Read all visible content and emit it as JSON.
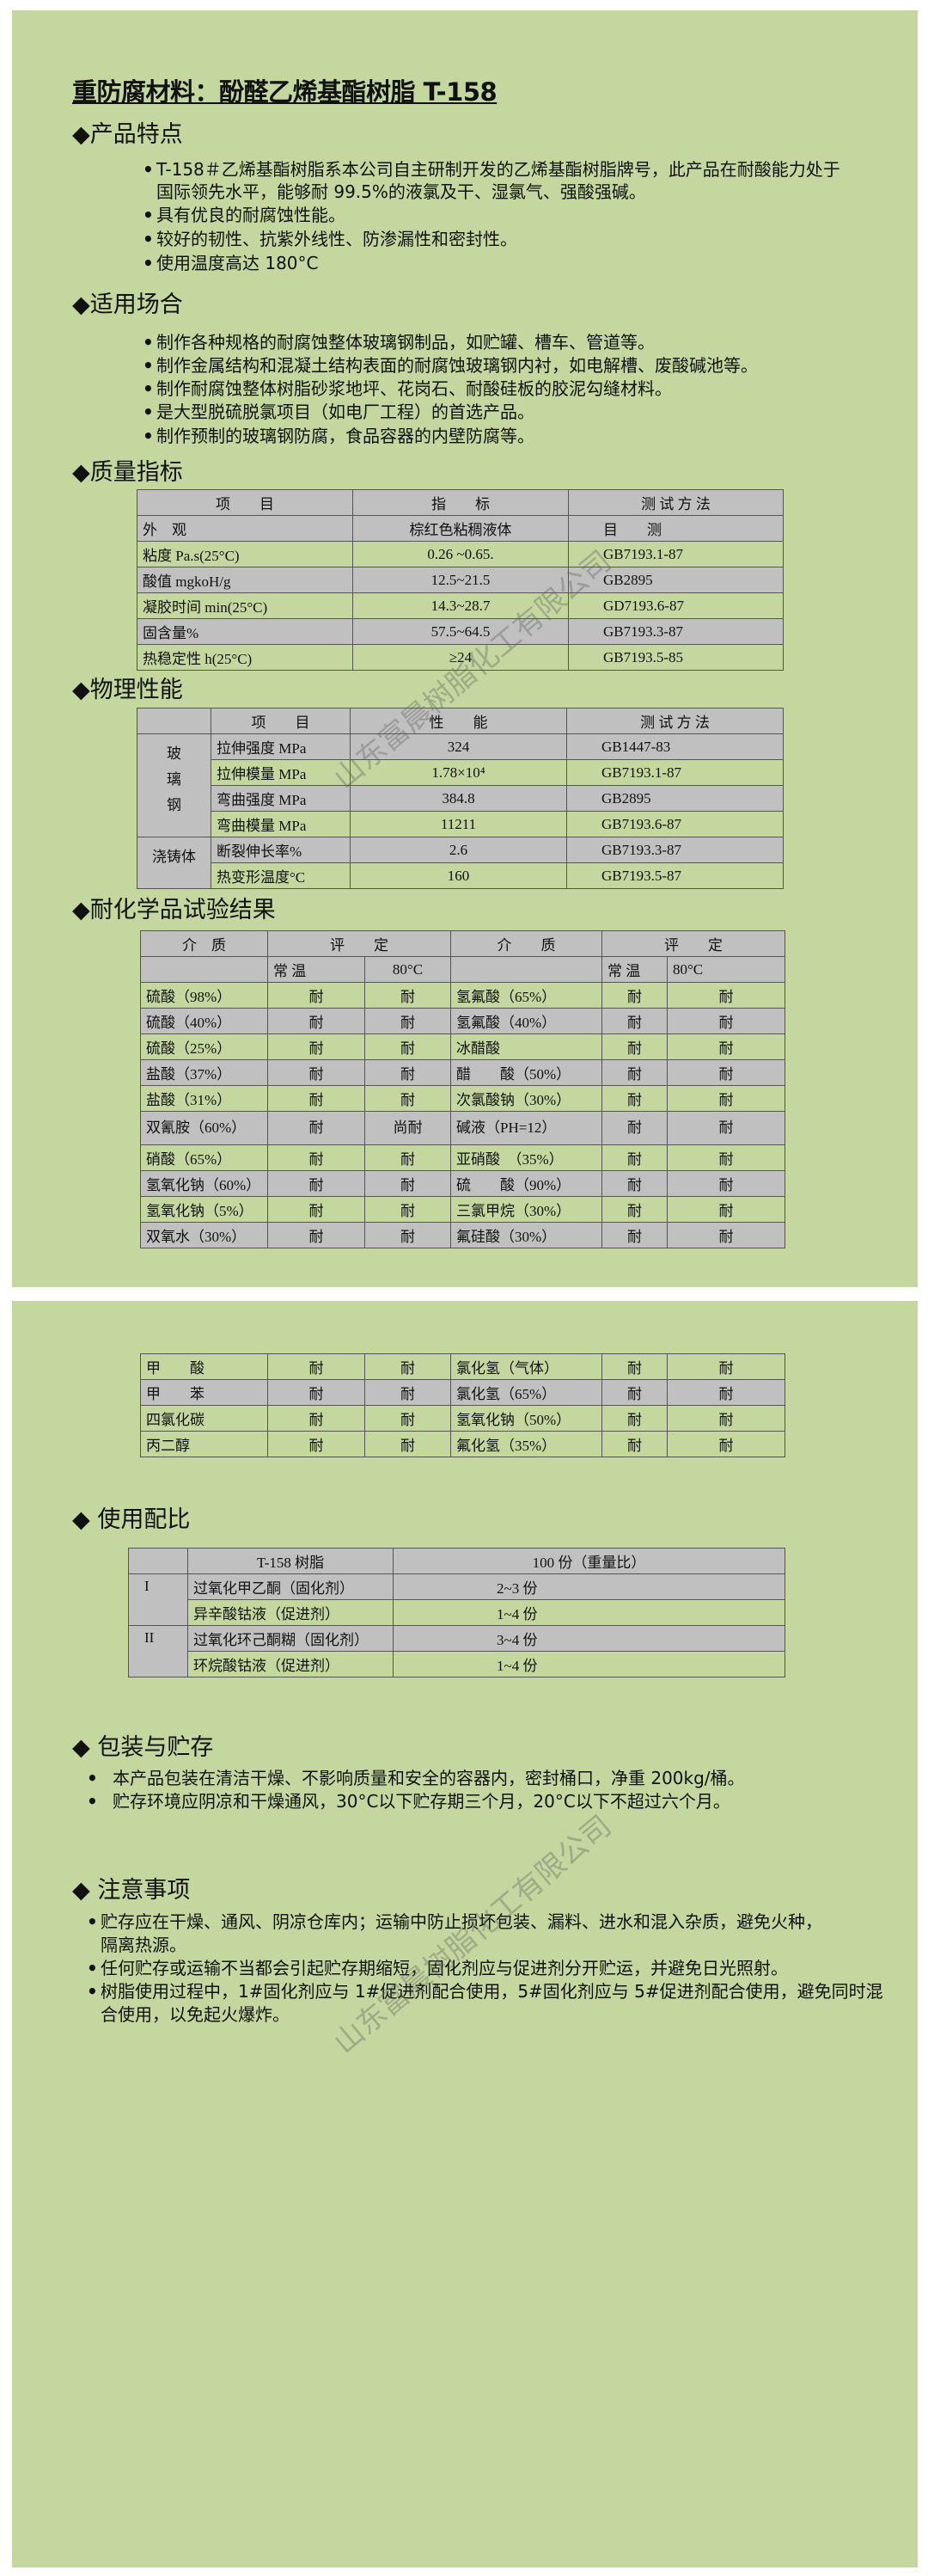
{
  "title": "重防腐材料：酚醛乙烯基酯树脂 T-158",
  "watermark": "山东富晨树脂化工有限公司",
  "colors": {
    "panel_green": "#c4d79e",
    "row_gray": "#c0c0c0"
  },
  "features": {
    "heading": "◆产品特点",
    "items": [
      "T-158＃乙烯基酯树脂系本公司自主研制开发的乙烯基酯树脂牌号，此产品在耐酸能力处于",
      "国际领先水平，能够耐 99.5%的液氯及干、湿氯气、强酸强碱。",
      "具有优良的耐腐蚀性能。",
      "较好的韧性、抗紫外线性、防渗漏性和密封性。",
      "使用温度高达 180°C"
    ]
  },
  "applications": {
    "heading": "◆适用场合",
    "items": [
      "制作各种规格的耐腐蚀整体玻璃钢制品，如贮罐、槽车、管道等。",
      "制作金属结构和混凝土结构表面的耐腐蚀玻璃钢内衬，如电解槽、废酸碱池等。",
      "制作耐腐蚀整体树脂砂浆地坪、花岗石、耐酸硅板的胶泥勾缝材料。",
      "是大型脱硫脱氯项目（如电厂工程）的首选产品。",
      "制作预制的玻璃钢防腐，食品容器的内壁防腐等。"
    ]
  },
  "quality": {
    "heading": "◆质量指标",
    "header": [
      "项　　目",
      "指　　标",
      "测 试 方 法"
    ],
    "rows": [
      [
        "外　观",
        "棕红色粘稠液体",
        "目　　测"
      ],
      [
        "粘度 Pa.s(25°C)",
        "0.26 ~0.65.",
        "GB7193.1-87"
      ],
      [
        "酸值 mgkoH/g",
        "12.5~21.5",
        "GB2895"
      ],
      [
        "凝胶时间 min(25°C)",
        "14.3~28.7",
        "GD7193.6-87"
      ],
      [
        "固含量%",
        "57.5~64.5",
        "GB7193.3-87"
      ],
      [
        "热稳定性 h(25°C)",
        "≥24",
        "GB7193.5-85"
      ]
    ]
  },
  "physical": {
    "heading": "◆物理性能",
    "header": [
      "",
      "项　　目",
      "性　　能",
      "测 试 方 法"
    ],
    "groups": [
      {
        "name": "玻\n璃\n钢",
        "rows": [
          [
            "拉伸强度 MPa",
            "324",
            "GB1447-83"
          ],
          [
            "拉伸模量 MPa",
            "1.78×10⁴",
            "GB7193.1-87"
          ],
          [
            "弯曲强度 MPa",
            "384.8",
            "GB2895"
          ],
          [
            "弯曲模量 MPa",
            "11211",
            "GB7193.6-87"
          ]
        ]
      },
      {
        "name": "浇铸体",
        "rows": [
          [
            "断裂伸长率%",
            "2.6",
            "GB7193.3-87"
          ],
          [
            "热变形温度°C",
            "160",
            "GB7193.5-87"
          ]
        ]
      }
    ]
  },
  "chemical": {
    "heading": "◆耐化学品试验结果",
    "header1": [
      "介　质",
      "评　　定",
      "介　　质",
      "评　　定"
    ],
    "header2": [
      "常 温",
      "80°C",
      "常 温",
      "80°C"
    ],
    "rows": [
      [
        "硫酸（98%）",
        "耐",
        "耐",
        "氢氟酸（65%）",
        "耐",
        "耐"
      ],
      [
        "硫酸（40%）",
        "耐",
        "耐",
        "氢氟酸（40%）",
        "耐",
        "耐"
      ],
      [
        "硫酸（25%）",
        "耐",
        "耐",
        "冰醋酸",
        "耐",
        "耐"
      ],
      [
        "盐酸（37%）",
        "耐",
        "耐",
        "醋　　酸（50%）",
        "耐",
        "耐"
      ],
      [
        "盐酸（31%）",
        "耐",
        "耐",
        "次氯酸钠（30%）",
        "耐",
        "耐"
      ],
      [
        "双氰胺（60%）",
        "耐",
        "尚耐",
        "碱液（PH=12）",
        "耐",
        "耐"
      ],
      [
        "硝酸（65%）",
        "耐",
        "耐",
        "亚硝酸　（35%）",
        "耐",
        "耐"
      ],
      [
        "氢氧化钠（60%）",
        "耐",
        "耐",
        "硫　　酸（90%）",
        "耐",
        "耐"
      ],
      [
        "氢氧化钠（5%）",
        "耐",
        "耐",
        "三氯甲烷（30%）",
        "耐",
        "耐"
      ],
      [
        "双氧水（30%）",
        "耐",
        "耐",
        "氟硅酸（30%）",
        "耐",
        "耐"
      ]
    ],
    "rows_continued": [
      [
        "甲　　酸",
        "耐",
        "耐",
        "氯化氢（气体）",
        "耐",
        "耐"
      ],
      [
        "甲　　苯",
        "耐",
        "耐",
        "氯化氢（65%）",
        "耐",
        "耐"
      ],
      [
        "四氯化碳",
        "耐",
        "耐",
        "氢氧化钠（50%）",
        "耐",
        "耐"
      ],
      [
        "丙二醇",
        "耐",
        "耐",
        "氟化氢（35%）",
        "耐",
        "耐"
      ]
    ]
  },
  "ratio": {
    "heading": "◆ 使用配比",
    "header": [
      "",
      "T-158 树脂",
      "100 份（重量比）"
    ],
    "groups": [
      {
        "name": "I",
        "rows": [
          [
            "过氧化甲乙酮（固化剂）",
            "2~3 份"
          ],
          [
            "异辛酸钴液（促进剂）",
            "1~4 份"
          ]
        ]
      },
      {
        "name": "II",
        "rows": [
          [
            "过氧化环己酮糊（固化剂）",
            "3~4 份"
          ],
          [
            "环烷酸钴液（促进剂）",
            "1~4 份"
          ]
        ]
      }
    ]
  },
  "packaging": {
    "heading": "◆ 包装与贮存",
    "items": [
      "本产品包装在清洁干燥、不影响质量和安全的容器内，密封桶口，净重 200kg/桶。",
      "贮存环境应阴凉和干燥通风，30°C以下贮存期三个月，20°C以下不超过六个月。"
    ]
  },
  "notes": {
    "heading": "◆ 注意事项",
    "items": [
      [
        "贮存应在干燥、通风、阴凉仓库内；运输中防止损坏包装、漏料、进水和混入杂质，避免火种，",
        "隔离热源。"
      ],
      [
        "任何贮存或运输不当都会引起贮存期缩短，固化剂应与促进剂分开贮运，并避免日光照射。"
      ],
      [
        "树脂使用过程中，1#固化剂应与 1#促进剂配合使用，5#固化剂应与 5#促进剂配合使用，避免同时混",
        "合使用，以免起火爆炸。"
      ]
    ]
  }
}
